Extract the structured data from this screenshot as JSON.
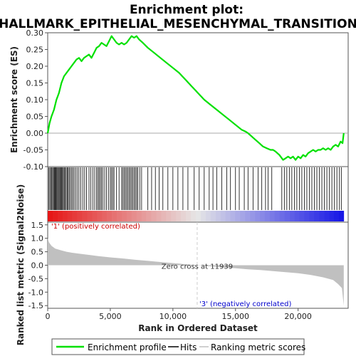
{
  "chart_data": {
    "type": "line",
    "title_line1": "Enrichment plot:",
    "title_line2": "HALLMARK_EPITHELIAL_MESENCHYMAL_TRANSITION",
    "es_panel": {
      "ylabel": "Enrichment score (ES)",
      "ylim": [
        -0.1,
        0.3
      ],
      "yticks": [
        "0.30",
        "0.25",
        "0.20",
        "0.15",
        "0.10",
        "0.05",
        "0.00",
        "-0.05",
        "-0.10"
      ],
      "ytick_values": [
        0.3,
        0.25,
        0.2,
        0.15,
        0.1,
        0.05,
        0.0,
        -0.05,
        -0.1
      ],
      "series": [
        {
          "name": "Enrichment profile",
          "color": "#00e000",
          "x": [
            0,
            150,
            300,
            500,
            700,
            900,
            1100,
            1300,
            1500,
            1700,
            1900,
            2100,
            2300,
            2500,
            2700,
            2900,
            3100,
            3300,
            3500,
            3700,
            3900,
            4100,
            4300,
            4500,
            4700,
            4900,
            5100,
            5300,
            5500,
            5700,
            5900,
            6100,
            6300,
            6500,
            6700,
            6900,
            7100,
            7300,
            7600,
            8000,
            8500,
            9000,
            9500,
            10000,
            10500,
            11000,
            11500,
            12000,
            12500,
            13000,
            13500,
            14000,
            14500,
            15000,
            15500,
            15800,
            16000,
            16300,
            16600,
            16900,
            17200,
            17500,
            17800,
            18000,
            18200,
            18500,
            18800,
            19000,
            19200,
            19400,
            19600,
            19800,
            20000,
            20200,
            20400,
            20600,
            20800,
            21000,
            21200,
            21400,
            21600,
            21800,
            22000,
            22200,
            22400,
            22600,
            22800,
            23000,
            23200,
            23400,
            23550,
            23650
          ],
          "y": [
            0.0,
            0.03,
            0.05,
            0.07,
            0.1,
            0.12,
            0.15,
            0.17,
            0.18,
            0.19,
            0.2,
            0.21,
            0.22,
            0.225,
            0.215,
            0.225,
            0.23,
            0.235,
            0.225,
            0.24,
            0.255,
            0.26,
            0.27,
            0.265,
            0.26,
            0.275,
            0.29,
            0.28,
            0.27,
            0.265,
            0.27,
            0.265,
            0.27,
            0.28,
            0.29,
            0.285,
            0.29,
            0.28,
            0.27,
            0.255,
            0.24,
            0.225,
            0.21,
            0.195,
            0.18,
            0.16,
            0.14,
            0.12,
            0.1,
            0.085,
            0.07,
            0.055,
            0.04,
            0.025,
            0.01,
            0.005,
            0.0,
            -0.01,
            -0.02,
            -0.03,
            -0.04,
            -0.045,
            -0.05,
            -0.05,
            -0.055,
            -0.065,
            -0.08,
            -0.075,
            -0.07,
            -0.075,
            -0.07,
            -0.08,
            -0.07,
            -0.075,
            -0.065,
            -0.07,
            -0.06,
            -0.055,
            -0.05,
            -0.055,
            -0.05,
            -0.05,
            -0.045,
            -0.05,
            -0.045,
            -0.05,
            -0.04,
            -0.035,
            -0.04,
            -0.025,
            -0.03,
            0.0
          ]
        }
      ]
    },
    "hits_panel": {
      "series_name": "Hits",
      "hit_positions": [
        80,
        170,
        260,
        330,
        400,
        470,
        540,
        600,
        660,
        720,
        790,
        850,
        920,
        980,
        1050,
        1120,
        1180,
        1250,
        1320,
        1400,
        1480,
        1560,
        1640,
        1720,
        1820,
        1920,
        2020,
        2120,
        2250,
        2380,
        2500,
        2650,
        2800,
        2950,
        3100,
        3300,
        3450,
        3600,
        3750,
        3900,
        4000,
        4100,
        4200,
        4300,
        4400,
        4550,
        4700,
        4850,
        5000,
        5100,
        5200,
        5300,
        5500,
        5700,
        5900,
        6000,
        6100,
        6200,
        6300,
        6400,
        6500,
        6600,
        6700,
        6800,
        6900,
        7000,
        7100,
        7200,
        7350,
        7500,
        8000,
        8300,
        8600,
        8900,
        9200,
        9600,
        10000,
        10400,
        10800,
        11200,
        11700,
        12100,
        12500,
        12900,
        13200,
        13500,
        13900,
        14300,
        14600,
        15000,
        15300,
        15700,
        16000,
        16400,
        16800,
        17100,
        17400,
        17600,
        17900,
        18700,
        18900,
        19100,
        19300,
        19500,
        19700,
        19900,
        20100,
        20300,
        20500,
        20700,
        20900,
        21100,
        21300,
        21500,
        21700,
        21900,
        22100,
        22300,
        22500,
        22700,
        22900,
        23100,
        23300,
        23450
      ]
    },
    "metric_panel": {
      "ylabel": "Ranked list metric (Signal2Noise)",
      "ylim": [
        -1.6,
        1.6
      ],
      "yticks": [
        "1.5",
        "1.0",
        "0.5",
        "0.0",
        "-0.5",
        "-1.0",
        "-1.5"
      ],
      "ytick_values": [
        1.5,
        1.0,
        0.5,
        0.0,
        -0.5,
        -1.0,
        -1.5
      ],
      "series_name": "Ranking metric scores",
      "x": [
        0,
        100,
        300,
        600,
        1000,
        1500,
        2000,
        3000,
        4000,
        5000,
        6000,
        7000,
        8000,
        9000,
        10000,
        11000,
        11939,
        13000,
        14000,
        15000,
        16000,
        17000,
        18000,
        19000,
        20000,
        21000,
        22000,
        22800,
        23200,
        23500,
        23650
      ],
      "y": [
        1.0,
        0.85,
        0.72,
        0.62,
        0.56,
        0.5,
        0.46,
        0.4,
        0.34,
        0.29,
        0.25,
        0.2,
        0.16,
        0.12,
        0.08,
        0.04,
        0.0,
        -0.04,
        -0.08,
        -0.11,
        -0.15,
        -0.18,
        -0.22,
        -0.26,
        -0.3,
        -0.36,
        -0.45,
        -0.55,
        -0.7,
        -0.85,
        -1.5
      ],
      "zero_cross_label": "Zero cross at 11939",
      "zero_cross_x": 11939,
      "pos_label": "'1' (positively correlated)",
      "neg_label": "'3' (negatively correlated)"
    },
    "x_axis": {
      "xlabel": "Rank in Ordered Dataset",
      "xlim": [
        0,
        24000
      ],
      "xticks": [
        "0",
        "5,000",
        "10,000",
        "15,000",
        "20,000"
      ],
      "xtick_values": [
        0,
        5000,
        10000,
        15000,
        20000
      ],
      "n_genes": 23650
    },
    "legend": [
      {
        "label": "Enrichment profile",
        "color": "#00e000"
      },
      {
        "label": "Hits",
        "color": "#000000"
      },
      {
        "label": "Ranking metric scores",
        "color": "#c0c0c0"
      }
    ],
    "colors": {
      "profile": "#00e000",
      "pos_text": "#cc0000",
      "neg_text": "#0000cc",
      "metric_fill": "#c0c0c0",
      "zero_line": "#cccccc"
    }
  }
}
